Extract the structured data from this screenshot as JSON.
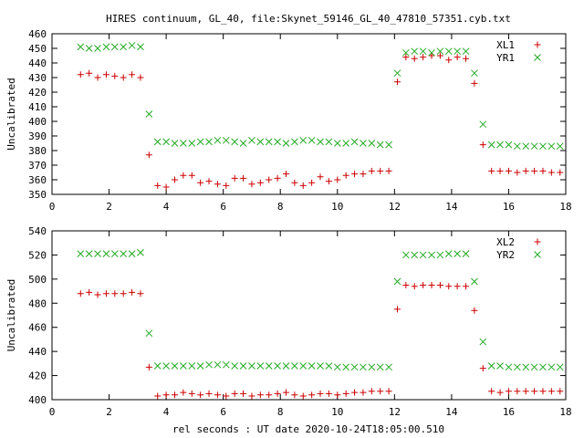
{
  "title": "HIRES continuum, GL_40, file:Skynet_59146_GL_40_47810_57351.cyb.txt",
  "xlabel": "rel seconds : UT date 2020-10-24T18:05:00.510",
  "colors": {
    "series1": "#cc0000",
    "series2": "#22aa22",
    "axis": "#000000"
  },
  "chart_data": [
    {
      "type": "scatter",
      "ylabel": "Uncalibrated",
      "xlim": [
        0,
        18
      ],
      "ylim": [
        350,
        460
      ],
      "xticks": [
        0,
        2,
        4,
        6,
        8,
        10,
        12,
        14,
        16,
        18
      ],
      "yticks": [
        350,
        360,
        370,
        380,
        390,
        400,
        410,
        420,
        430,
        440,
        450,
        460
      ],
      "legend_position": "top-right",
      "grid": false,
      "x": [
        1.0,
        1.3,
        1.6,
        1.9,
        2.2,
        2.5,
        2.8,
        3.1,
        3.4,
        3.7,
        4.0,
        4.3,
        4.6,
        4.9,
        5.2,
        5.5,
        5.8,
        6.1,
        6.4,
        6.7,
        7.0,
        7.3,
        7.6,
        7.9,
        8.2,
        8.5,
        8.8,
        9.1,
        9.4,
        9.7,
        10.0,
        10.3,
        10.6,
        10.9,
        11.2,
        11.5,
        11.8,
        12.1,
        12.4,
        12.7,
        13.0,
        13.3,
        13.6,
        13.9,
        14.2,
        14.5,
        14.8,
        15.1,
        15.4,
        15.7,
        16.0,
        16.3,
        16.6,
        16.9,
        17.2,
        17.5,
        17.8
      ],
      "series": [
        {
          "name": "XL1",
          "marker": "+",
          "values": [
            432,
            433,
            430,
            432,
            431,
            430,
            432,
            430,
            377,
            356,
            355,
            360,
            363,
            363,
            358,
            359,
            357,
            356,
            361,
            361,
            357,
            358,
            360,
            361,
            364,
            358,
            356,
            358,
            362,
            359,
            360,
            363,
            364,
            364,
            366,
            366,
            366,
            427,
            444,
            443,
            444,
            445,
            445,
            442,
            444,
            443,
            426,
            384,
            366,
            366,
            366,
            365,
            366,
            366,
            366,
            365,
            365
          ]
        },
        {
          "name": "YR1",
          "marker": "x",
          "values": [
            451,
            450,
            450,
            451,
            451,
            451,
            452,
            451,
            405,
            386,
            386,
            385,
            385,
            385,
            386,
            386,
            387,
            387,
            386,
            385,
            387,
            386,
            386,
            386,
            385,
            386,
            387,
            387,
            386,
            386,
            385,
            385,
            386,
            385,
            385,
            384,
            384,
            433,
            447,
            448,
            448,
            447,
            448,
            448,
            448,
            448,
            433,
            398,
            384,
            384,
            384,
            383,
            383,
            383,
            383,
            383,
            383
          ]
        }
      ]
    },
    {
      "type": "scatter",
      "ylabel": "Uncalibrated",
      "xlim": [
        0,
        18
      ],
      "ylim": [
        400,
        540
      ],
      "xticks": [
        0,
        2,
        4,
        6,
        8,
        10,
        12,
        14,
        16,
        18
      ],
      "yticks": [
        400,
        420,
        440,
        460,
        480,
        500,
        520,
        540
      ],
      "legend_position": "top-right",
      "grid": false,
      "x": [
        1.0,
        1.3,
        1.6,
        1.9,
        2.2,
        2.5,
        2.8,
        3.1,
        3.4,
        3.7,
        4.0,
        4.3,
        4.6,
        4.9,
        5.2,
        5.5,
        5.8,
        6.1,
        6.4,
        6.7,
        7.0,
        7.3,
        7.6,
        7.9,
        8.2,
        8.5,
        8.8,
        9.1,
        9.4,
        9.7,
        10.0,
        10.3,
        10.6,
        10.9,
        11.2,
        11.5,
        11.8,
        12.1,
        12.4,
        12.7,
        13.0,
        13.3,
        13.6,
        13.9,
        14.2,
        14.5,
        14.8,
        15.1,
        15.4,
        15.7,
        16.0,
        16.3,
        16.6,
        16.9,
        17.2,
        17.5,
        17.8
      ],
      "series": [
        {
          "name": "XL2",
          "marker": "+",
          "values": [
            488,
            489,
            487,
            488,
            488,
            488,
            489,
            488,
            427,
            403,
            404,
            404,
            406,
            405,
            404,
            405,
            404,
            403,
            405,
            405,
            403,
            404,
            404,
            405,
            406,
            404,
            403,
            404,
            405,
            405,
            404,
            405,
            406,
            406,
            407,
            407,
            407,
            475,
            495,
            494,
            495,
            495,
            495,
            494,
            494,
            494,
            474,
            426,
            407,
            406,
            407,
            407,
            407,
            407,
            407,
            407,
            407
          ]
        },
        {
          "name": "YR2",
          "marker": "x",
          "values": [
            521,
            521,
            521,
            521,
            521,
            521,
            521,
            522,
            455,
            428,
            428,
            428,
            428,
            428,
            428,
            429,
            429,
            429,
            428,
            428,
            428,
            428,
            428,
            428,
            428,
            428,
            428,
            428,
            428,
            428,
            427,
            427,
            427,
            427,
            427,
            427,
            427,
            498,
            520,
            520,
            520,
            520,
            520,
            521,
            521,
            521,
            498,
            448,
            428,
            428,
            427,
            427,
            427,
            427,
            427,
            427,
            427
          ]
        }
      ]
    }
  ]
}
